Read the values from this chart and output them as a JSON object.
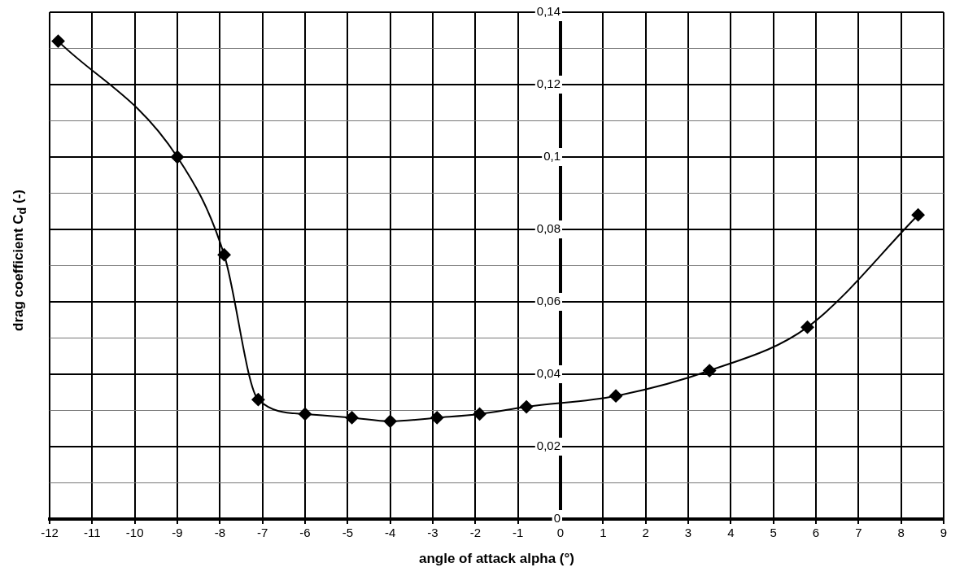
{
  "chart_data": {
    "type": "line",
    "xlabel": "angle of attack alpha (°)",
    "ylabel": "drag coefficient C$_{d}$ (-)",
    "x": [
      -11.8,
      -9,
      -7.9,
      -7.1,
      -6,
      -4.9,
      -4,
      -2.9,
      -1.9,
      -0.8,
      1.3,
      3.5,
      5.8,
      8.4
    ],
    "series": [
      {
        "color": "#000000",
        "values": [
          0.132,
          0.1,
          0.073,
          0.033,
          0.029,
          0.028,
          0.027,
          0.028,
          0.029,
          0.031,
          0.034,
          0.041,
          0.053,
          0.084
        ]
      }
    ],
    "xlim": [
      -12,
      9
    ],
    "xticks": [
      -12,
      -11,
      -10,
      -9,
      -8,
      -7,
      -6,
      -5,
      -4,
      -3,
      -2,
      -1,
      0,
      1,
      2,
      3,
      4,
      5,
      6,
      7,
      8,
      9
    ],
    "ylim": [
      0,
      0.14
    ],
    "yticks": [
      {
        "value": 0,
        "label": "0"
      },
      {
        "value": 0.01,
        "label": null
      },
      {
        "value": 0.02,
        "label": "0,02"
      },
      {
        "value": 0.03,
        "label": null
      },
      {
        "value": 0.04,
        "label": "0,04"
      },
      {
        "value": 0.05,
        "label": null
      },
      {
        "value": 0.06,
        "label": "0,06"
      },
      {
        "value": 0.07,
        "label": null
      },
      {
        "value": 0.08,
        "label": "0,08"
      },
      {
        "value": 0.09,
        "label": null
      },
      {
        "value": 0.1,
        "label": "0,1"
      },
      {
        "value": 0.11,
        "label": null
      },
      {
        "value": 0.12,
        "label": "0,12"
      },
      {
        "value": 0.13,
        "label": null
      },
      {
        "value": 0.14,
        "label": "0,14"
      }
    ],
    "grid": true,
    "marker": "diamond",
    "line_style": "solid"
  }
}
